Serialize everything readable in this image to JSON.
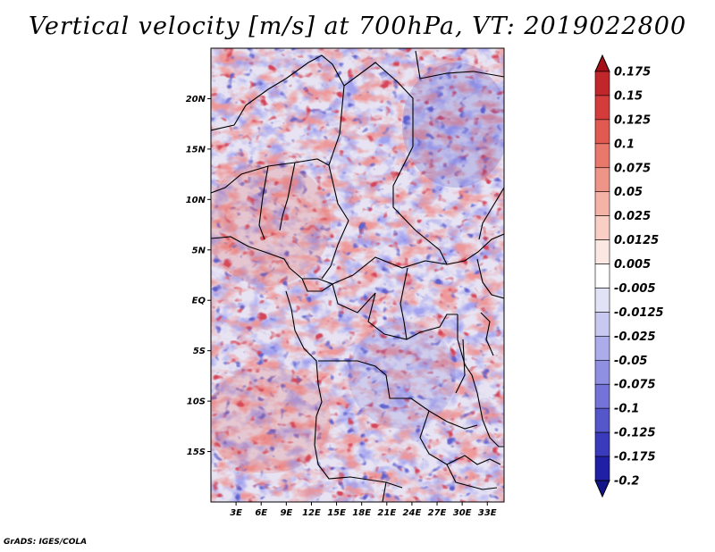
{
  "title": "Vertical velocity [m/s] at 700hPa, VT: 2019022800",
  "map": {
    "variable": "Vertical velocity",
    "units": "m/s",
    "level": "700hPa",
    "valid_time": "2019022800",
    "lon_range": [
      0,
      35
    ],
    "lat_range": [
      -20,
      25
    ],
    "lat_labels": [
      "20N",
      "15N",
      "10N",
      "5N",
      "EQ",
      "5S",
      "10S",
      "15S"
    ],
    "lat_values": [
      20,
      15,
      10,
      5,
      0,
      -5,
      -10,
      -15
    ],
    "lon_labels": [
      "3E",
      "6E",
      "9E",
      "12E",
      "15E",
      "18E",
      "21E",
      "24E",
      "27E",
      "30E",
      "33E"
    ],
    "lon_values": [
      3,
      6,
      9,
      12,
      15,
      18,
      21,
      24,
      27,
      30,
      33
    ]
  },
  "colorbar": {
    "labels": [
      "0.175",
      "0.15",
      "0.125",
      "0.1",
      "0.075",
      "0.05",
      "0.025",
      "0.0125",
      "0.005",
      "-0.005",
      "-0.0125",
      "-0.025",
      "-0.05",
      "-0.075",
      "-0.1",
      "-0.125",
      "-0.175",
      "-0.2"
    ],
    "colors": [
      "#a50f15",
      "#c0262a",
      "#d43c3c",
      "#e05a52",
      "#e8786c",
      "#ef9488",
      "#f5b2a6",
      "#f9cec4",
      "#fce8e2",
      "#ffffff",
      "#e2e2f7",
      "#c8c8f1",
      "#acacea",
      "#9090e2",
      "#7373d8",
      "#5656cb",
      "#3a3abc",
      "#2020a6",
      "#14148a"
    ]
  },
  "credit": "GrADS: IGES/COLA"
}
